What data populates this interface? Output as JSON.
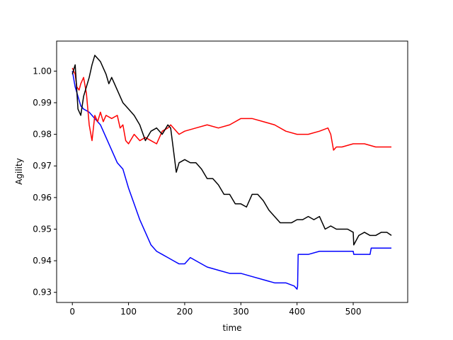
{
  "chart_data": {
    "type": "line",
    "title": "",
    "xlabel": "time",
    "ylabel": "Agility",
    "xlim": [
      -28,
      597
    ],
    "ylim": [
      0.9268,
      1.0095
    ],
    "xticks": [
      0,
      100,
      200,
      300,
      400,
      500
    ],
    "xtick_labels": [
      "0",
      "100",
      "200",
      "300",
      "400",
      "500"
    ],
    "yticks": [
      0.93,
      0.94,
      0.95,
      0.96,
      0.97,
      0.98,
      0.99,
      1.0
    ],
    "ytick_labels": [
      "0.93",
      "0.94",
      "0.95",
      "0.96",
      "0.97",
      "0.98",
      "0.99",
      "1.00"
    ],
    "grid": false,
    "series": [
      {
        "color": "#0000ff",
        "x": [
          0,
          5,
          10,
          15,
          20,
          30,
          40,
          50,
          60,
          70,
          80,
          90,
          100,
          110,
          120,
          130,
          140,
          150,
          160,
          170,
          180,
          190,
          200,
          210,
          220,
          240,
          260,
          280,
          300,
          320,
          340,
          360,
          380,
          395,
          400,
          401,
          402,
          410,
          420,
          440,
          460,
          480,
          500,
          501,
          520,
          530,
          532,
          550,
          568
        ],
        "y": [
          1.0,
          0.995,
          0.992,
          0.989,
          0.988,
          0.987,
          0.985,
          0.983,
          0.979,
          0.975,
          0.971,
          0.969,
          0.963,
          0.958,
          0.953,
          0.949,
          0.945,
          0.943,
          0.942,
          0.941,
          0.94,
          0.939,
          0.939,
          0.941,
          0.94,
          0.938,
          0.937,
          0.936,
          0.936,
          0.935,
          0.934,
          0.933,
          0.933,
          0.932,
          0.931,
          0.932,
          0.942,
          0.942,
          0.942,
          0.943,
          0.943,
          0.943,
          0.943,
          0.942,
          0.942,
          0.942,
          0.944,
          0.944,
          0.944
        ]
      },
      {
        "color": "#ff0000",
        "x": [
          0,
          5,
          8,
          12,
          15,
          20,
          25,
          30,
          35,
          40,
          45,
          50,
          55,
          60,
          70,
          80,
          85,
          90,
          95,
          100,
          110,
          120,
          130,
          140,
          150,
          160,
          170,
          175,
          180,
          190,
          200,
          220,
          240,
          260,
          280,
          300,
          320,
          340,
          360,
          380,
          400,
          420,
          440,
          455,
          460,
          465,
          470,
          480,
          500,
          520,
          540,
          568
        ],
        "y": [
          1.001,
          0.999,
          0.995,
          0.994,
          0.996,
          0.998,
          0.993,
          0.983,
          0.978,
          0.986,
          0.984,
          0.987,
          0.984,
          0.986,
          0.985,
          0.986,
          0.982,
          0.983,
          0.978,
          0.977,
          0.98,
          0.978,
          0.979,
          0.978,
          0.977,
          0.981,
          0.982,
          0.983,
          0.982,
          0.98,
          0.981,
          0.982,
          0.983,
          0.982,
          0.983,
          0.985,
          0.985,
          0.984,
          0.983,
          0.981,
          0.98,
          0.98,
          0.981,
          0.982,
          0.98,
          0.975,
          0.976,
          0.976,
          0.977,
          0.977,
          0.976,
          0.976
        ]
      },
      {
        "color": "#000000",
        "x": [
          0,
          5,
          10,
          15,
          20,
          30,
          35,
          40,
          45,
          50,
          55,
          60,
          65,
          70,
          75,
          80,
          90,
          100,
          110,
          120,
          130,
          140,
          150,
          160,
          170,
          175,
          180,
          185,
          190,
          200,
          210,
          220,
          230,
          240,
          250,
          260,
          270,
          280,
          290,
          300,
          310,
          320,
          330,
          340,
          350,
          360,
          370,
          380,
          390,
          400,
          410,
          420,
          430,
          440,
          450,
          460,
          470,
          480,
          490,
          500,
          501,
          510,
          520,
          530,
          540,
          550,
          560,
          568
        ],
        "y": [
          0.999,
          1.002,
          0.988,
          0.986,
          0.992,
          0.998,
          1.002,
          1.005,
          1.004,
          1.003,
          1.001,
          0.999,
          0.996,
          0.998,
          0.996,
          0.994,
          0.99,
          0.988,
          0.986,
          0.983,
          0.978,
          0.981,
          0.982,
          0.98,
          0.983,
          0.982,
          0.975,
          0.968,
          0.971,
          0.972,
          0.971,
          0.971,
          0.969,
          0.966,
          0.966,
          0.964,
          0.961,
          0.961,
          0.958,
          0.958,
          0.957,
          0.961,
          0.961,
          0.959,
          0.956,
          0.954,
          0.952,
          0.952,
          0.952,
          0.953,
          0.953,
          0.954,
          0.953,
          0.954,
          0.95,
          0.951,
          0.95,
          0.95,
          0.95,
          0.949,
          0.945,
          0.948,
          0.949,
          0.948,
          0.948,
          0.949,
          0.949,
          0.948
        ]
      }
    ]
  }
}
